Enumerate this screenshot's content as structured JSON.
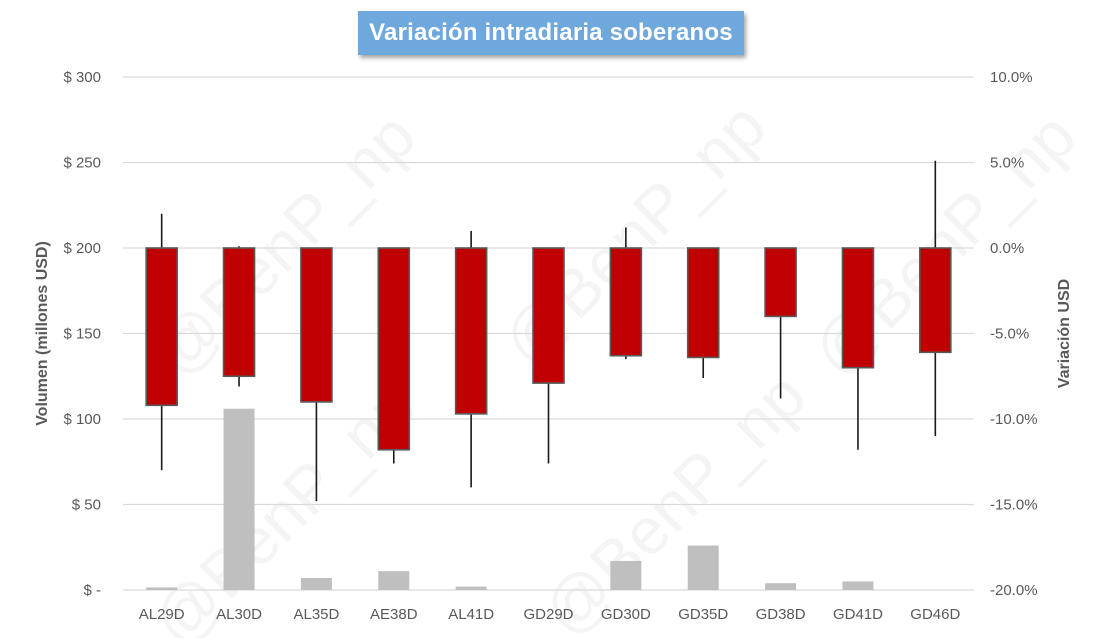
{
  "chart_data": {
    "type": "candlestick",
    "title": "Variación intradiaria soberanos",
    "categories": [
      "AL29D",
      "AL30D",
      "AL35D",
      "AE38D",
      "AL41D",
      "GD29D",
      "GD30D",
      "GD35D",
      "GD38D",
      "GD41D",
      "GD46D"
    ],
    "y_left": {
      "label": "Volumen (millones USD)",
      "range": [
        0,
        300
      ],
      "ticks": [
        0,
        50,
        100,
        150,
        200,
        250,
        300
      ],
      "tick_labels": [
        "$ -",
        "$ 50",
        "$ 100",
        "$ 150",
        "$ 200",
        "$ 250",
        "$ 300"
      ]
    },
    "y_right": {
      "label": "Variación USD",
      "range": [
        -0.2,
        0.1
      ],
      "ticks": [
        -0.2,
        -0.15,
        -0.1,
        -0.05,
        0.0,
        0.05,
        0.1
      ],
      "tick_labels": [
        "-20.0%",
        "-15.0%",
        "-10.0%",
        "-5.0%",
        "0.0%",
        "5.0%",
        "10.0%"
      ]
    },
    "volume_series": {
      "axis": "left",
      "values": [
        1.5,
        106,
        7,
        11,
        2,
        0,
        17,
        26,
        4,
        5,
        0
      ]
    },
    "candles": {
      "axis": "right",
      "open": [
        0.0,
        0.0,
        0.0,
        0.0,
        0.0,
        0.0,
        0.0,
        0.0,
        0.0,
        0.0,
        0.0
      ],
      "close": [
        -0.092,
        -0.075,
        -0.09,
        -0.118,
        -0.097,
        -0.079,
        -0.063,
        -0.064,
        -0.04,
        -0.07,
        -0.061
      ],
      "high": [
        0.02,
        0.001,
        0.0,
        0.0,
        0.01,
        0.0,
        0.012,
        0.0,
        0.0,
        0.0,
        0.051
      ],
      "low": [
        -0.13,
        -0.081,
        -0.148,
        -0.126,
        -0.14,
        -0.126,
        -0.065,
        -0.076,
        -0.088,
        -0.118,
        -0.11
      ]
    },
    "grid": true,
    "legend": "none",
    "watermark": "@BenP_np",
    "colors": {
      "candle_down": "#c00000",
      "candle_border": "#595959",
      "wick": "#1a1a1a",
      "volume": "#bfbfbf",
      "grid": "#d9d9d9",
      "axis_text": "#595959",
      "title_bg": "#6fa8dc",
      "title_text": "#ffffff"
    }
  }
}
